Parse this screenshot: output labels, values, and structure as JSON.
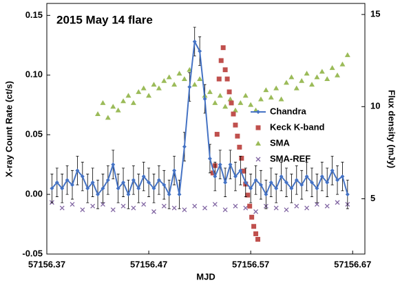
{
  "chart_data": {
    "type": "scatter",
    "title": "2015 May 14 flare",
    "xlabel": "MJD",
    "ylabel": "X-ray Count Rate  (ct/s)",
    "y2label": "Flux density (mJy)",
    "xlim": [
      57156.37,
      57156.682
    ],
    "xticks": [
      57156.37,
      57156.47,
      57156.57,
      57156.67
    ],
    "ylim": [
      -0.05,
      0.16
    ],
    "yticks": [
      -0.05,
      {
        "value": 0,
        "label": "0.00"
      },
      0.05,
      {
        "value": 0.1,
        "label": "0.10"
      },
      0.15
    ],
    "y2lim": [
      2,
      15.6
    ],
    "y2ticks": [
      5,
      10,
      15
    ],
    "legend": "right",
    "series": [
      {
        "name": "Chandra",
        "color": "#4472c4",
        "marker": "diamond",
        "line": true,
        "error": 0.012,
        "x": [
          57156.375,
          57156.38,
          57156.385,
          57156.39,
          57156.395,
          57156.4,
          57156.405,
          57156.41,
          57156.415,
          57156.42,
          57156.425,
          57156.43,
          57156.435,
          57156.44,
          57156.445,
          57156.45,
          57156.455,
          57156.46,
          57156.465,
          57156.47,
          57156.475,
          57156.48,
          57156.485,
          57156.49,
          57156.495,
          57156.5,
          57156.505,
          57156.51,
          57156.515,
          57156.52,
          57156.525,
          57156.53,
          57156.535,
          57156.54,
          57156.545,
          57156.55,
          57156.555,
          57156.56,
          57156.565,
          57156.57,
          57156.575,
          57156.58,
          57156.585,
          57156.59,
          57156.595,
          57156.6,
          57156.605,
          57156.61,
          57156.615,
          57156.62,
          57156.625,
          57156.63,
          57156.635,
          57156.64,
          57156.645,
          57156.65,
          57156.655,
          57156.66,
          57156.665
        ],
        "values": [
          0.005,
          0.01,
          0.005,
          0.012,
          0.008,
          0.02,
          0.015,
          0.005,
          0.01,
          0.0,
          0.005,
          0.012,
          0.025,
          0.005,
          0.01,
          0.0,
          0.012,
          0.005,
          0.015,
          0.01,
          0.005,
          0.012,
          0.008,
          0.0,
          0.02,
          0.0,
          0.04,
          0.09,
          0.128,
          0.12,
          0.08,
          0.03,
          0.015,
          0.025,
          0.01,
          0.025,
          0.015,
          0.02,
          0.01,
          0.005,
          0.012,
          0.008,
          0.0,
          0.01,
          0.005,
          0.015,
          0.01,
          0.005,
          0.012,
          0.008,
          0.015,
          0.01,
          0.005,
          0.015,
          0.01,
          0.02,
          0.012,
          0.015,
          0.0
        ]
      },
      {
        "name": "Keck K-band",
        "color": "#c0504d",
        "marker": "square",
        "axis": "y2",
        "x": [
          57156.533,
          57156.535,
          57156.537,
          57156.539,
          57156.541,
          57156.543,
          57156.545,
          57156.547,
          57156.549,
          57156.551,
          57156.553,
          57156.555,
          57156.557,
          57156.559,
          57156.561,
          57156.563,
          57156.565,
          57156.567,
          57156.569,
          57156.571,
          57156.573,
          57156.575,
          57156.577
        ],
        "values": [
          6.4,
          6.8,
          8.5,
          11.5,
          12.5,
          13.2,
          12.0,
          11.5,
          10.8,
          10.2,
          9.6,
          9.0,
          8.4,
          7.8,
          7.2,
          6.5,
          5.8,
          5.2,
          4.6,
          4.0,
          3.5,
          3.1,
          2.8
        ]
      },
      {
        "name": "SMA",
        "color": "#9bbb59",
        "marker": "triangle",
        "axis": "y2",
        "x": [
          57156.42,
          57156.425,
          57156.43,
          57156.435,
          57156.44,
          57156.445,
          57156.45,
          57156.455,
          57156.46,
          57156.465,
          57156.47,
          57156.475,
          57156.48,
          57156.485,
          57156.49,
          57156.495,
          57156.5,
          57156.505,
          57156.51,
          57156.515,
          57156.52,
          57156.525,
          57156.53,
          57156.535,
          57156.54,
          57156.545,
          57156.55,
          57156.555,
          57156.56,
          57156.565,
          57156.57,
          57156.575,
          57156.58,
          57156.585,
          57156.59,
          57156.595,
          57156.6,
          57156.605,
          57156.61,
          57156.615,
          57156.62,
          57156.625,
          57156.63,
          57156.635,
          57156.64,
          57156.645,
          57156.65,
          57156.655,
          57156.66,
          57156.665
        ],
        "values": [
          9.6,
          10.2,
          9.4,
          10.0,
          9.8,
          10.3,
          10.6,
          10.2,
          10.8,
          11.0,
          10.6,
          11.2,
          11.0,
          11.4,
          11.6,
          11.2,
          11.8,
          11.5,
          12.0,
          11.2,
          11.5,
          10.6,
          10.8,
          10.2,
          10.6,
          10.0,
          10.4,
          9.8,
          10.2,
          10.6,
          10.1,
          9.8,
          10.4,
          10.9,
          10.5,
          11.0,
          10.4,
          11.3,
          11.6,
          11.0,
          11.4,
          11.8,
          11.2,
          11.6,
          11.9,
          11.5,
          12.1,
          11.7,
          12.3,
          12.8
        ]
      },
      {
        "name": "SMA-REF",
        "color": "#8064a2",
        "marker": "cross",
        "axis": "y2",
        "x": [
          57156.375,
          57156.385,
          57156.395,
          57156.405,
          57156.415,
          57156.425,
          57156.435,
          57156.445,
          57156.455,
          57156.465,
          57156.475,
          57156.485,
          57156.495,
          57156.505,
          57156.515,
          57156.525,
          57156.535,
          57156.545,
          57156.555,
          57156.565,
          57156.575,
          57156.585,
          57156.595,
          57156.605,
          57156.615,
          57156.625,
          57156.635,
          57156.645,
          57156.655,
          57156.665
        ],
        "values": [
          4.8,
          4.5,
          4.7,
          4.4,
          4.6,
          4.7,
          4.4,
          4.6,
          4.5,
          4.7,
          4.3,
          4.6,
          4.5,
          4.4,
          4.6,
          4.5,
          4.7,
          4.4,
          4.6,
          4.5,
          4.3,
          4.6,
          4.5,
          4.4,
          4.6,
          4.5,
          4.7,
          4.6,
          4.8,
          4.7
        ]
      }
    ]
  }
}
